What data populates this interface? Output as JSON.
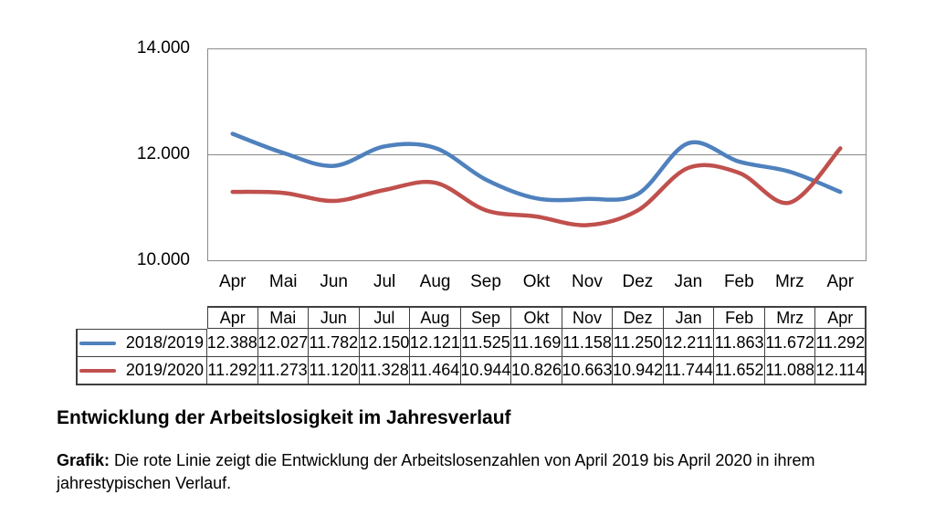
{
  "title": "Entwicklung der Arbeitslosigkeit im Jahresverlauf",
  "caption": {
    "bold_prefix": "Grafik:",
    "line1_rest": " Die rote Linie zeigt die Entwicklung der Arbeitslosenzahlen von April 2019 bis April 2020 in ihrem",
    "line2": "jahrestypischen Verlauf."
  },
  "colors": {
    "series_2018_2019": "#4F81BD",
    "series_2019_2020": "#C0504D",
    "axis_gray": "#8a8a8a",
    "table_border": "#3f3f3f"
  },
  "chart_data": {
    "type": "line",
    "smoothed": true,
    "title": "",
    "xlabel": "",
    "ylabel": "",
    "grid": "horizontal major gridlines at 10000/12000/14000",
    "legend_position": "table rows below chart",
    "ylim": [
      10000,
      14000
    ],
    "yticks": [
      {
        "value": 14000,
        "label": "14.000"
      },
      {
        "value": 12000,
        "label": "12.000"
      },
      {
        "value": 10000,
        "label": "10.000"
      }
    ],
    "categories": [
      "Apr",
      "Mai",
      "Jun",
      "Jul",
      "Aug",
      "Sep",
      "Okt",
      "Nov",
      "Dez",
      "Jan",
      "Feb",
      "Mrz",
      "Apr"
    ],
    "series": [
      {
        "name": "2018/2019",
        "color": "#4F81BD",
        "values": [
          12388,
          12027,
          11782,
          12150,
          12121,
          11525,
          11169,
          11158,
          11250,
          12211,
          11863,
          11672,
          11292
        ]
      },
      {
        "name": "2019/2020",
        "color": "#C0504D",
        "values": [
          11292,
          11273,
          11120,
          11328,
          11464,
          10944,
          10826,
          10663,
          10942,
          11744,
          11652,
          11088,
          12114
        ]
      }
    ]
  },
  "table": {
    "months": [
      "Apr",
      "Mai",
      "Jun",
      "Jul",
      "Aug",
      "Sep",
      "Okt",
      "Nov",
      "Dez",
      "Jan",
      "Feb",
      "Mrz",
      "Apr"
    ],
    "rows": [
      {
        "label": "2018/2019",
        "color": "#4F81BD",
        "values": [
          "12.388",
          "12.027",
          "11.782",
          "12.150",
          "12.121",
          "11.525",
          "11.169",
          "11.158",
          "11.250",
          "12.211",
          "11.863",
          "11.672",
          "11.292"
        ]
      },
      {
        "label": "2019/2020",
        "color": "#C0504D",
        "values": [
          "11.292",
          "11.273",
          "11.120",
          "11.328",
          "11.464",
          "10.944",
          "10.826",
          "10.663",
          "10.942",
          "11.744",
          "11.652",
          "11.088",
          "12.114"
        ]
      }
    ]
  }
}
